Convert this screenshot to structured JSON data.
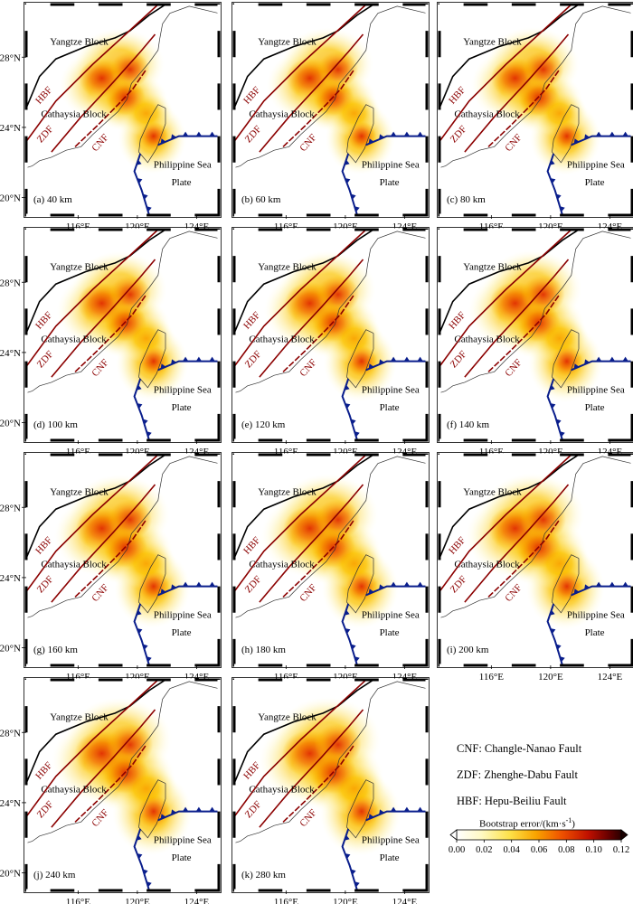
{
  "figure": {
    "panels": [
      {
        "label": "(a) 40 km",
        "depth_km": 40
      },
      {
        "label": "(b) 60 km",
        "depth_km": 60
      },
      {
        "label": "(c) 80 km",
        "depth_km": 80
      },
      {
        "label": "(d) 100 km",
        "depth_km": 100
      },
      {
        "label": "(e) 120 km",
        "depth_km": 120
      },
      {
        "label": "(f) 140 km",
        "depth_km": 140
      },
      {
        "label": "(g) 160 km",
        "depth_km": 160
      },
      {
        "label": "(h) 180 km",
        "depth_km": 180
      },
      {
        "label": "(i) 200 km",
        "depth_km": 200
      },
      {
        "label": "(j) 240 km",
        "depth_km": 240
      },
      {
        "label": "(k) 280 km",
        "depth_km": 280
      }
    ],
    "map_labels": {
      "yangtze": "Yangtze Block",
      "cathaysia": "Cathaysia Block",
      "hbf": "HBF",
      "zdf": "ZDF",
      "cnf": "CNF",
      "psp_line1": "Philippine Sea",
      "psp_line2": "Plate"
    },
    "lat_ticks": [
      "28°N",
      "24°N",
      "20°N"
    ],
    "lon_ticks": [
      "116°E",
      "120°E",
      "124°E"
    ],
    "lon_range_deg": [
      112.5,
      125.5
    ],
    "lat_range_deg": [
      19,
      31
    ]
  },
  "legend": {
    "abbreviations": [
      "CNF: Changle-Nanao Fault",
      "ZDF: Zhenghe-Dabu Fault",
      "HBF: Hepu-Beiliu Fault"
    ],
    "colorbar_title": "Bootstrap error/(km·s",
    "colorbar_title_sup": "-1",
    "colorbar_title_end": ")",
    "colorbar_ticks": [
      "0.00",
      "0.02",
      "0.04",
      "0.06",
      "0.08",
      "0.10",
      "0.12"
    ],
    "colorbar_range": [
      0,
      0.12
    ]
  },
  "colors": {
    "fault": "#8b0000",
    "subduction": "#0a1e8c",
    "block_boundary": "#000000",
    "map_label": "#8b0000"
  }
}
